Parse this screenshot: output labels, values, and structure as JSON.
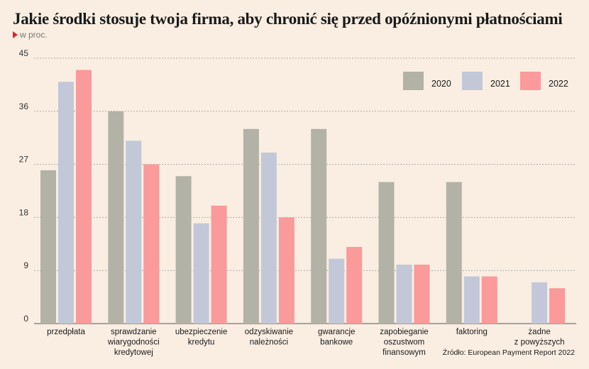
{
  "title": "Jakie środki stosuje twoja firma, aby chronić się przed opóźnionymi płatnościami",
  "subtitle": "w proc.",
  "source": "Źródło: European Payment Report 2022",
  "colors": {
    "2020": "#b3b2a6",
    "2021": "#c2c8d8",
    "2022": "#fa9a9a",
    "grid": "#aaaaaa",
    "marker": "#e0242b"
  },
  "chart_data": {
    "type": "bar",
    "ylim": [
      0,
      45
    ],
    "yticks": [
      0,
      9,
      18,
      27,
      36,
      45
    ],
    "grid": true,
    "legend_position": "top-right",
    "categories": [
      [
        "przedpłata"
      ],
      [
        "sprawdzanie",
        "wiarygodności",
        "kredytowej"
      ],
      [
        "ubezpieczenie",
        "kredytu"
      ],
      [
        "odzyskiwanie",
        "należności"
      ],
      [
        "gwarancje",
        "bankowe"
      ],
      [
        "zapobieganie",
        "oszustwom",
        "finansowym"
      ],
      [
        "faktoring"
      ],
      [
        "żadne",
        "z powyższych"
      ]
    ],
    "series": [
      {
        "name": "2020",
        "values": [
          26,
          36,
          25,
          33,
          33,
          24,
          24,
          0
        ]
      },
      {
        "name": "2021",
        "values": [
          41,
          31,
          17,
          29,
          11,
          10,
          8,
          7
        ]
      },
      {
        "name": "2022",
        "values": [
          43,
          27,
          20,
          18,
          13,
          10,
          8,
          6
        ]
      }
    ]
  }
}
